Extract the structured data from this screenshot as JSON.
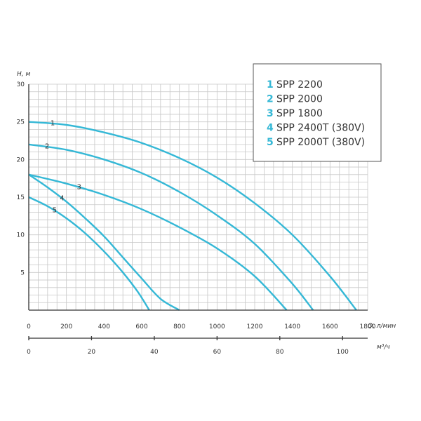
{
  "colors": {
    "curve": "#35b8d6",
    "accent": "#35b8d6",
    "grid": "#c8c8c8",
    "axis": "#333333"
  },
  "chart_data": {
    "type": "line",
    "ylabel": "H, м",
    "xlabel": "Q, л/мин",
    "x2label": "м³/ч",
    "xlim": [
      0,
      1800
    ],
    "ylim": [
      0,
      30
    ],
    "x2lim": [
      0,
      108
    ],
    "grid": true,
    "legend_position": "top-right",
    "x_ticks": [
      0,
      200,
      400,
      600,
      800,
      1000,
      1200,
      1400,
      1600,
      1800
    ],
    "y_ticks": [
      5,
      10,
      15,
      20,
      25,
      30
    ],
    "x2_ticks": [
      0,
      20,
      40,
      60,
      80,
      100
    ],
    "series": [
      {
        "id": "1",
        "name": "SPP 2200",
        "points": [
          [
            0,
            25
          ],
          [
            200,
            24.6
          ],
          [
            400,
            23.6
          ],
          [
            600,
            22.2
          ],
          [
            800,
            20.2
          ],
          [
            1000,
            17.6
          ],
          [
            1200,
            14.2
          ],
          [
            1400,
            10
          ],
          [
            1600,
            4.5
          ],
          [
            1740,
            0
          ]
        ]
      },
      {
        "id": "2",
        "name": "SPP 2000",
        "points": [
          [
            0,
            22
          ],
          [
            200,
            21.3
          ],
          [
            400,
            20
          ],
          [
            600,
            18.2
          ],
          [
            800,
            15.7
          ],
          [
            1000,
            12.6
          ],
          [
            1200,
            8.8
          ],
          [
            1400,
            3.5
          ],
          [
            1510,
            0
          ]
        ]
      },
      {
        "id": "3",
        "name": "SPP 1800",
        "points": [
          [
            0,
            18
          ],
          [
            200,
            16.8
          ],
          [
            400,
            15.3
          ],
          [
            600,
            13.4
          ],
          [
            800,
            11
          ],
          [
            1000,
            8.2
          ],
          [
            1200,
            4.5
          ],
          [
            1370,
            0
          ]
        ]
      },
      {
        "id": "4",
        "name": "SPP 2400T (380V)",
        "points": [
          [
            0,
            18
          ],
          [
            100,
            16.3
          ],
          [
            200,
            14.4
          ],
          [
            300,
            12.2
          ],
          [
            400,
            9.8
          ],
          [
            500,
            7
          ],
          [
            600,
            4.2
          ],
          [
            700,
            1.5
          ],
          [
            800,
            0
          ]
        ]
      },
      {
        "id": "5",
        "name": "SPP 2000T (380V)",
        "points": [
          [
            0,
            15
          ],
          [
            100,
            13.8
          ],
          [
            200,
            12.2
          ],
          [
            300,
            10.2
          ],
          [
            400,
            7.8
          ],
          [
            500,
            5
          ],
          [
            580,
            2.4
          ],
          [
            640,
            0
          ]
        ]
      }
    ]
  }
}
